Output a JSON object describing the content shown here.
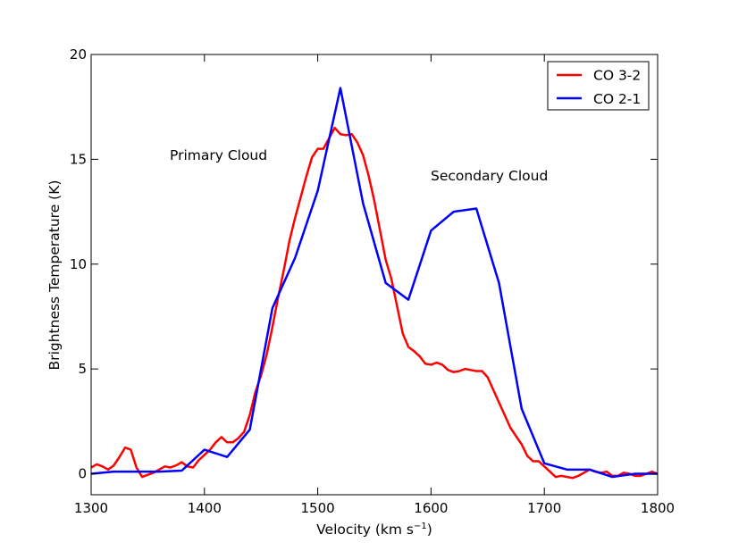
{
  "chart_data": {
    "type": "line",
    "title": "",
    "xlabel": "Velocity (km s",
    "xlabel_sup": "−1",
    "xlabel_close": ")",
    "ylabel": "Brightness Temperature (K)",
    "xlim": [
      1300,
      1800
    ],
    "ylim": [
      -1,
      20
    ],
    "xticks": [
      1300,
      1400,
      1500,
      1600,
      1700,
      1800
    ],
    "xtick_labels": [
      "1300",
      "1400",
      "1500",
      "1600",
      "1700",
      "1800"
    ],
    "yticks": [
      0,
      5,
      10,
      15,
      20
    ],
    "ytick_labels": [
      "0",
      "5",
      "10",
      "15",
      "20"
    ],
    "grid": false,
    "legend_position": "top-right",
    "annotations": [
      {
        "text": "Primary Cloud",
        "x": 1369,
        "y": 15.1
      },
      {
        "text": "Secondary Cloud",
        "x": 1599,
        "y": 14.1
      }
    ],
    "series": [
      {
        "name": "CO 3-2",
        "color": "#ff0000",
        "x": [
          1300,
          1305,
          1310,
          1315,
          1320,
          1325,
          1330,
          1335,
          1340,
          1345,
          1350,
          1355,
          1360,
          1365,
          1370,
          1375,
          1380,
          1385,
          1390,
          1395,
          1400,
          1405,
          1410,
          1415,
          1420,
          1425,
          1430,
          1435,
          1440,
          1445,
          1450,
          1455,
          1460,
          1465,
          1470,
          1475,
          1480,
          1485,
          1490,
          1495,
          1500,
          1505,
          1510,
          1515,
          1520,
          1525,
          1530,
          1535,
          1540,
          1545,
          1550,
          1555,
          1560,
          1565,
          1570,
          1575,
          1580,
          1585,
          1590,
          1595,
          1600,
          1605,
          1610,
          1615,
          1620,
          1625,
          1630,
          1635,
          1640,
          1645,
          1650,
          1655,
          1660,
          1665,
          1670,
          1675,
          1680,
          1685,
          1690,
          1695,
          1700,
          1705,
          1710,
          1715,
          1720,
          1725,
          1730,
          1735,
          1740,
          1745,
          1750,
          1755,
          1760,
          1765,
          1770,
          1775,
          1780,
          1785,
          1790,
          1795,
          1800
        ],
        "values": [
          0.3,
          0.45,
          0.35,
          0.2,
          0.4,
          0.8,
          1.25,
          1.15,
          0.3,
          -0.15,
          -0.05,
          0.05,
          0.2,
          0.35,
          0.3,
          0.4,
          0.55,
          0.35,
          0.3,
          0.65,
          0.9,
          1.15,
          1.5,
          1.75,
          1.5,
          1.5,
          1.7,
          2.0,
          2.8,
          3.9,
          4.7,
          5.7,
          7.0,
          8.4,
          9.7,
          11.1,
          12.2,
          13.2,
          14.2,
          15.1,
          15.5,
          15.5,
          16.0,
          16.5,
          16.2,
          16.15,
          16.2,
          15.8,
          15.2,
          14.2,
          13.0,
          11.6,
          10.2,
          9.3,
          8.0,
          6.7,
          6.05,
          5.85,
          5.6,
          5.25,
          5.2,
          5.3,
          5.2,
          4.95,
          4.85,
          4.9,
          5.0,
          4.95,
          4.9,
          4.9,
          4.6,
          4.0,
          3.4,
          2.8,
          2.2,
          1.8,
          1.4,
          0.85,
          0.6,
          0.6,
          0.35,
          0.1,
          -0.15,
          -0.1,
          -0.15,
          -0.2,
          -0.1,
          0.05,
          0.2,
          0.1,
          0.05,
          0.1,
          -0.1,
          -0.1,
          0.05,
          0.0,
          -0.1,
          -0.1,
          0.0,
          0.1,
          0.0
        ]
      },
      {
        "name": "CO 2-1",
        "color": "#0000ff",
        "x": [
          1300,
          1320,
          1340,
          1360,
          1380,
          1400,
          1420,
          1440,
          1460,
          1480,
          1500,
          1520,
          1540,
          1560,
          1580,
          1600,
          1620,
          1640,
          1660,
          1680,
          1700,
          1720,
          1740,
          1760,
          1780,
          1800
        ],
        "values": [
          0.0,
          0.1,
          0.1,
          0.1,
          0.15,
          1.15,
          0.8,
          2.1,
          7.9,
          10.3,
          13.5,
          18.4,
          12.9,
          9.1,
          8.3,
          11.6,
          12.5,
          12.65,
          9.1,
          3.1,
          0.5,
          0.2,
          0.2,
          -0.15,
          0.0,
          0.0
        ]
      }
    ]
  }
}
